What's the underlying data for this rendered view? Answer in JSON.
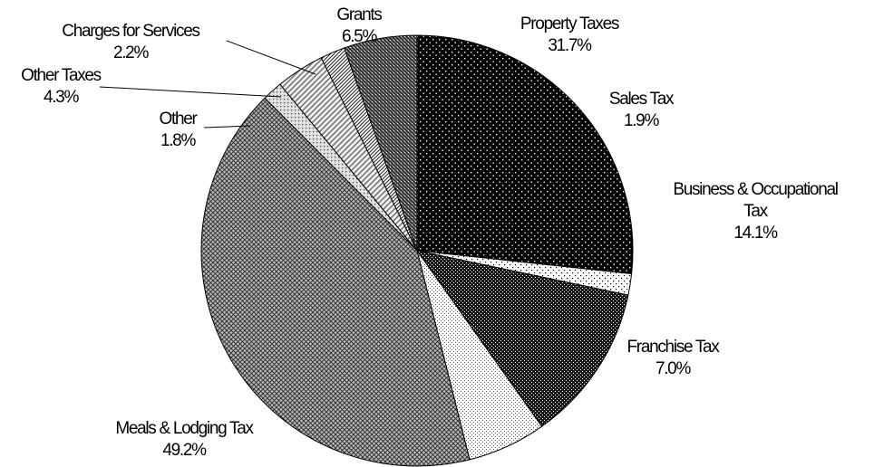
{
  "chart_data": {
    "type": "pie",
    "slices": [
      {
        "label": "Property Taxes",
        "percent_label": "31.7%",
        "value": 31.7,
        "pattern": "dots-on-black"
      },
      {
        "label": "Sales Tax",
        "percent_label": "1.9%",
        "value": 1.9,
        "pattern": "sparse-dots"
      },
      {
        "label": "Business & Occupational Tax",
        "label_lines": [
          "Business & Occupational",
          "Tax"
        ],
        "percent_label": "14.1%",
        "value": 14.1,
        "pattern": "dense-checker"
      },
      {
        "label": "Franchise Tax",
        "percent_label": "7.0%",
        "value": 7.0,
        "pattern": "fine-dots"
      },
      {
        "label": "Meals & Lodging Tax",
        "percent_label": "49.2%",
        "value": 49.2,
        "pattern": "crosshatch"
      },
      {
        "label": "Other",
        "percent_label": "1.8%",
        "value": 1.8,
        "pattern": "light-dots"
      },
      {
        "label": "Other Taxes",
        "percent_label": "4.3%",
        "value": 4.3,
        "pattern": "light-diagonal"
      },
      {
        "label": "Charges for Services",
        "percent_label": "2.2%",
        "value": 2.2,
        "pattern": "diagonal-hatch"
      },
      {
        "label": "Grants",
        "percent_label": "6.5%",
        "value": 6.5,
        "pattern": "dark-diagonal"
      }
    ],
    "start_angle_deg": 0,
    "direction": "clockwise",
    "legend": "none",
    "colors": {
      "ink": "#000000",
      "background": "#ffffff"
    }
  }
}
